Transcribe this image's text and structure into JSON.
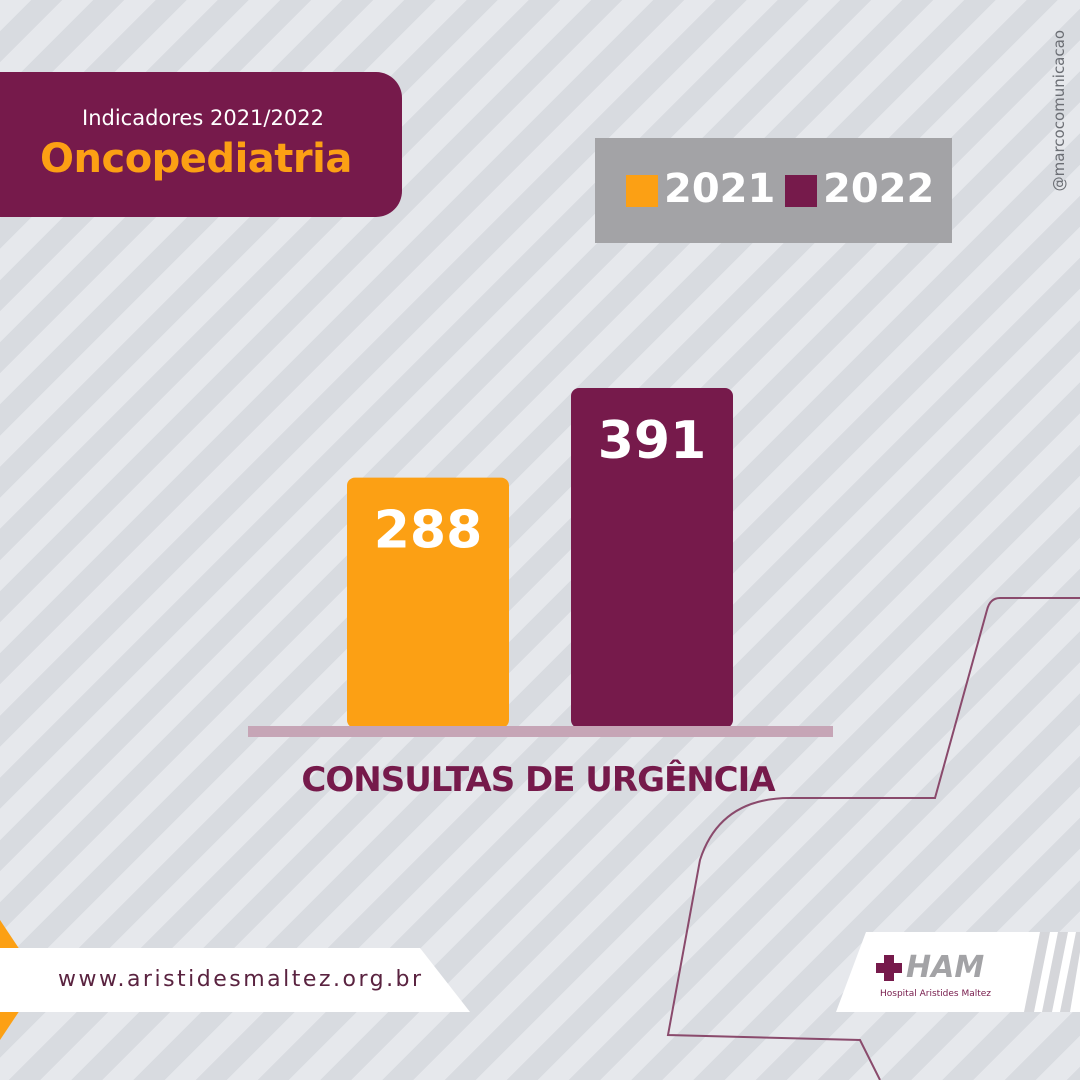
{
  "header": {
    "subtitle": "Indicadores 2021/2022",
    "title": "Oncopediatria"
  },
  "social_handle": "@marcocomunicacao",
  "colors": {
    "series_2021": "#fca014",
    "series_2022": "#761a4b",
    "legend_bg": "#a3a3a6",
    "baseline": "#c6a5b6"
  },
  "chart_data": {
    "type": "bar",
    "categories": [
      "CONSULTAS DE URGÊNCIA"
    ],
    "series": [
      {
        "name": "2021",
        "values": [
          288
        ]
      },
      {
        "name": "2022",
        "values": [
          391
        ]
      }
    ],
    "value_labels": [
      "288",
      "391"
    ],
    "legend_position": "top-right",
    "grid": false
  },
  "footer": {
    "url": "www.aristidesmaltez.org.br",
    "logo_text": "HAM",
    "logo_subtitle": "Hospital Aristides Maltez"
  }
}
